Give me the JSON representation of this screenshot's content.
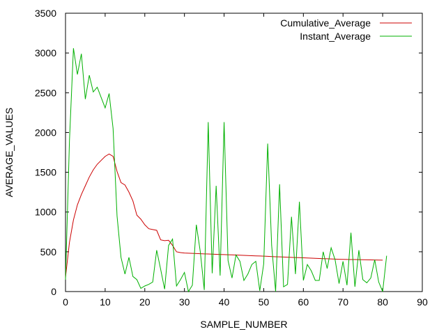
{
  "chart_data": {
    "type": "line",
    "title": "",
    "xlabel": "SAMPLE_NUMBER",
    "ylabel": "AVERAGE_VALUES",
    "xlim": [
      0,
      90
    ],
    "ylim": [
      0,
      3500
    ],
    "x_ticks": [
      0,
      10,
      20,
      30,
      40,
      50,
      60,
      70,
      80,
      90
    ],
    "y_ticks": [
      0,
      500,
      1000,
      1500,
      2000,
      2500,
      3000,
      3500
    ],
    "grid": false,
    "legend_position": "top-right",
    "series": [
      {
        "name": "Cumulative_Average",
        "color": "#cc0000",
        "x": [
          0,
          1,
          2,
          3,
          4,
          5,
          6,
          7,
          8,
          9,
          10,
          11,
          12,
          13,
          14,
          15,
          16,
          17,
          18,
          19,
          20,
          21,
          22,
          23,
          24,
          25,
          26,
          27,
          28,
          29,
          30,
          31,
          32,
          33,
          34,
          35,
          36,
          37,
          38,
          39,
          40,
          41,
          42,
          43,
          44,
          45,
          46,
          47,
          48,
          49,
          50,
          51,
          52,
          53,
          54,
          55,
          56,
          57,
          58,
          59,
          60,
          61,
          62,
          63,
          64,
          65,
          66,
          67,
          68,
          69,
          70,
          71,
          72,
          73,
          74,
          75,
          76,
          77,
          78,
          79,
          80
        ],
        "values": [
          180,
          620,
          900,
          1090,
          1220,
          1330,
          1440,
          1530,
          1600,
          1650,
          1700,
          1730,
          1700,
          1510,
          1370,
          1340,
          1250,
          1140,
          960,
          910,
          840,
          790,
          780,
          770,
          650,
          640,
          645,
          580,
          500,
          490,
          485,
          482,
          480,
          478,
          476,
          474,
          472,
          470,
          468,
          466,
          465,
          463,
          461,
          459,
          457,
          455,
          453,
          451,
          449,
          447,
          445,
          443,
          440,
          438,
          436,
          434,
          432,
          430,
          428,
          426,
          424,
          422,
          420,
          418,
          416,
          414,
          412,
          410,
          408,
          406,
          405,
          404,
          403,
          402,
          401,
          400,
          399,
          398,
          397,
          396,
          395
        ]
      },
      {
        "name": "Instant_Average",
        "color": "#00b000",
        "x": [
          0,
          1,
          2,
          3,
          4,
          5,
          6,
          7,
          8,
          9,
          10,
          11,
          12,
          13,
          14,
          15,
          16,
          17,
          18,
          19,
          20,
          21,
          22,
          23,
          24,
          25,
          26,
          27,
          28,
          29,
          30,
          31,
          32,
          33,
          34,
          35,
          36,
          37,
          38,
          39,
          40,
          41,
          42,
          43,
          44,
          45,
          46,
          47,
          48,
          49,
          50,
          51,
          52,
          53,
          54,
          55,
          56,
          57,
          58,
          59,
          60,
          61,
          62,
          63,
          64,
          65,
          66,
          67,
          68,
          69,
          70,
          71,
          72,
          73,
          74,
          75,
          76,
          77,
          78,
          79,
          80,
          81
        ],
        "values": [
          150,
          1900,
          3060,
          2730,
          2990,
          2420,
          2720,
          2510,
          2570,
          2440,
          2310,
          2490,
          2050,
          950,
          430,
          220,
          430,
          190,
          150,
          40,
          70,
          90,
          120,
          520,
          280,
          30,
          580,
          660,
          70,
          150,
          240,
          0,
          80,
          840,
          500,
          20,
          2130,
          230,
          1330,
          200,
          2130,
          390,
          170,
          460,
          380,
          140,
          220,
          340,
          380,
          10,
          350,
          1860,
          580,
          0,
          1350,
          60,
          90,
          940,
          220,
          1130,
          140,
          340,
          260,
          140,
          140,
          500,
          290,
          550,
          400,
          100,
          380,
          80,
          740,
          60,
          520,
          150,
          110,
          170,
          400,
          120,
          0,
          450
        ]
      }
    ]
  }
}
